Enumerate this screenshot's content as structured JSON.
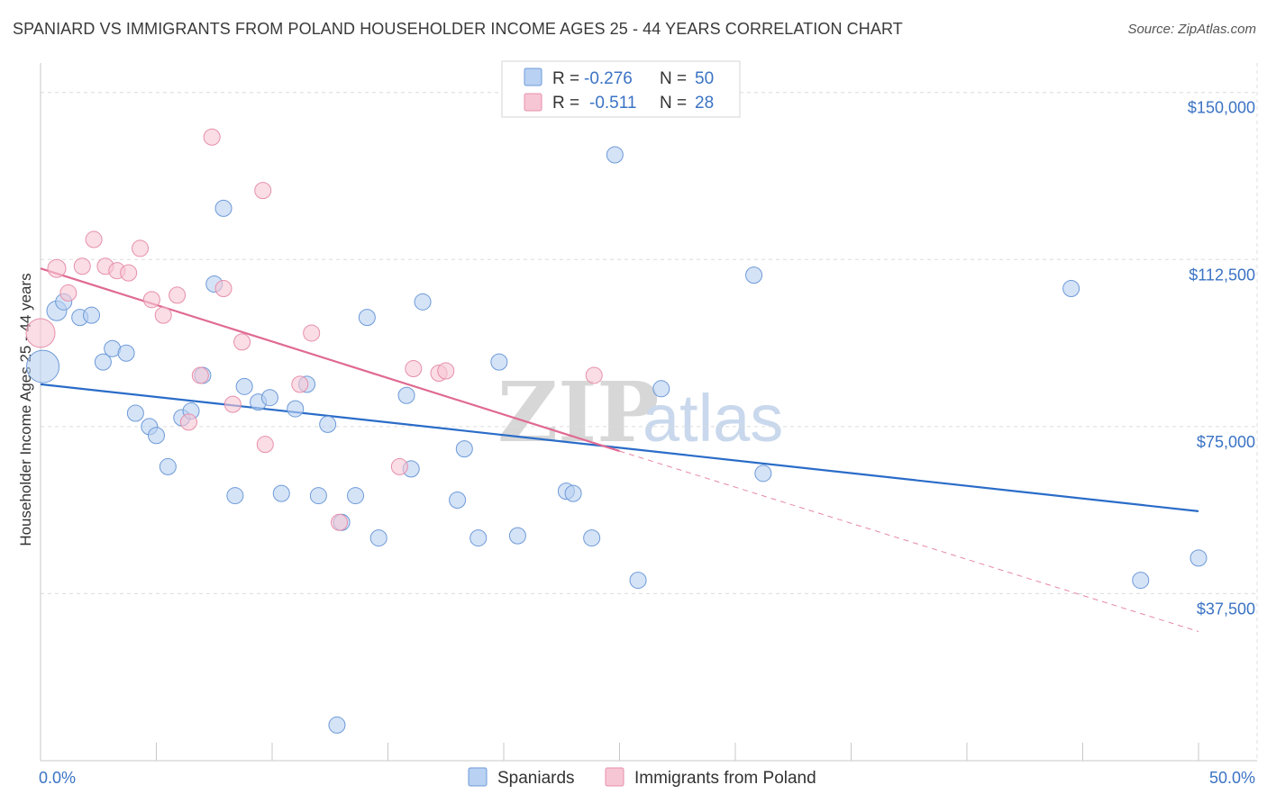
{
  "title": "SPANIARD VS IMMIGRANTS FROM POLAND HOUSEHOLDER INCOME AGES 25 - 44 YEARS CORRELATION CHART",
  "source": "Source: ZipAtlas.com",
  "watermark": {
    "zip": "ZIP",
    "atlas": "atlas"
  },
  "colors": {
    "spaniards_fill": "#b9d1f2",
    "spaniards_stroke": "#6d9ad8",
    "spaniards_line": "#2a6cc8",
    "poland_fill": "#f7c6d4",
    "poland_stroke": "#e78fab",
    "poland_line": "#e06a91"
  },
  "legend": {
    "rows": [
      {
        "r_label": "R =",
        "r_value": "-0.276",
        "n_label": "N =",
        "n_value": "50"
      },
      {
        "r_label": "R =",
        "r_value": "-0.511",
        "n_label": "N =",
        "n_value": "28"
      }
    ]
  },
  "bottom_legend": [
    "Spaniards",
    "Immigrants from Poland"
  ],
  "chart_data": {
    "type": "scatter",
    "ylabel": "Householder Income Ages 25 - 44 years",
    "xlim": [
      0,
      50
    ],
    "ylim": [
      0,
      155000
    ],
    "x_tick_labels": [
      "0.0%",
      "50.0%"
    ],
    "y_ticks": [
      {
        "value": 37500,
        "label": "$37,500"
      },
      {
        "value": 75000,
        "label": "$75,000"
      },
      {
        "value": 112500,
        "label": "$112,500"
      },
      {
        "value": 150000,
        "label": "$150,000"
      }
    ],
    "grid": true,
    "series": [
      {
        "name": "Spaniards",
        "trend": {
          "x": [
            0,
            50
          ],
          "y": [
            84500,
            56000
          ]
        },
        "points": [
          [
            0.1,
            88500,
            18
          ],
          [
            0.7,
            101000,
            11
          ],
          [
            1.0,
            103000,
            9
          ],
          [
            1.7,
            99500,
            9
          ],
          [
            2.2,
            100000,
            9
          ],
          [
            2.7,
            89500,
            9
          ],
          [
            3.1,
            92500,
            9
          ],
          [
            3.7,
            91500,
            9
          ],
          [
            4.1,
            78000,
            9
          ],
          [
            4.7,
            75000,
            9
          ],
          [
            5.0,
            73000,
            9
          ],
          [
            5.5,
            66000,
            9
          ],
          [
            6.1,
            77000,
            9
          ],
          [
            6.5,
            78500,
            9
          ],
          [
            7.0,
            86500,
            9
          ],
          [
            7.5,
            107000,
            9
          ],
          [
            7.9,
            124000,
            9
          ],
          [
            8.4,
            59500,
            9
          ],
          [
            8.8,
            84000,
            9
          ],
          [
            9.4,
            80500,
            9
          ],
          [
            9.9,
            81500,
            9
          ],
          [
            10.4,
            60000,
            9
          ],
          [
            11.0,
            79000,
            9
          ],
          [
            11.5,
            84500,
            9
          ],
          [
            12.0,
            59500,
            9
          ],
          [
            12.4,
            75500,
            9
          ],
          [
            12.8,
            8000,
            9
          ],
          [
            13.0,
            53500,
            9
          ],
          [
            13.6,
            59500,
            9
          ],
          [
            14.1,
            99500,
            9
          ],
          [
            14.6,
            50000,
            9
          ],
          [
            15.8,
            82000,
            9
          ],
          [
            16.5,
            103000,
            9
          ],
          [
            18.0,
            58500,
            9
          ],
          [
            18.3,
            70000,
            9
          ],
          [
            18.9,
            50000,
            9
          ],
          [
            19.8,
            89500,
            9
          ],
          [
            20.6,
            50500,
            9
          ],
          [
            22.7,
            60500,
            9
          ],
          [
            23.0,
            60000,
            9
          ],
          [
            23.8,
            50000,
            9
          ],
          [
            24.8,
            136000,
            9
          ],
          [
            25.8,
            40500,
            9
          ],
          [
            26.8,
            83500,
            9
          ],
          [
            30.8,
            109000,
            9
          ],
          [
            31.2,
            64500,
            9
          ],
          [
            44.5,
            106000,
            9
          ],
          [
            47.5,
            40500,
            9
          ],
          [
            50.0,
            45500,
            9
          ],
          [
            16.0,
            65500,
            9
          ]
        ]
      },
      {
        "name": "Immigrants from Poland",
        "trend": {
          "x": [
            0,
            25
          ],
          "y": [
            110500,
            69500
          ]
        },
        "trend_ext": {
          "x": [
            25,
            50
          ],
          "y": [
            69500,
            29000
          ]
        },
        "points": [
          [
            0.0,
            96000,
            16
          ],
          [
            0.7,
            110500,
            10
          ],
          [
            1.2,
            105000,
            9
          ],
          [
            1.8,
            111000,
            9
          ],
          [
            2.3,
            117000,
            9
          ],
          [
            2.8,
            111000,
            9
          ],
          [
            3.3,
            110000,
            9
          ],
          [
            3.8,
            109500,
            9
          ],
          [
            4.3,
            115000,
            9
          ],
          [
            4.8,
            103500,
            9
          ],
          [
            5.3,
            100000,
            9
          ],
          [
            5.9,
            104500,
            9
          ],
          [
            6.4,
            76000,
            9
          ],
          [
            6.9,
            86500,
            9
          ],
          [
            7.4,
            140000,
            9
          ],
          [
            7.9,
            106000,
            9
          ],
          [
            8.3,
            80000,
            9
          ],
          [
            8.7,
            94000,
            9
          ],
          [
            9.6,
            128000,
            9
          ],
          [
            9.7,
            71000,
            9
          ],
          [
            11.2,
            84500,
            9
          ],
          [
            11.7,
            96000,
            9
          ],
          [
            12.9,
            53500,
            9
          ],
          [
            15.5,
            66000,
            9
          ],
          [
            16.1,
            88000,
            9
          ],
          [
            17.2,
            87000,
            9
          ],
          [
            17.5,
            87500,
            9
          ],
          [
            23.9,
            86500,
            9
          ]
        ]
      }
    ]
  }
}
